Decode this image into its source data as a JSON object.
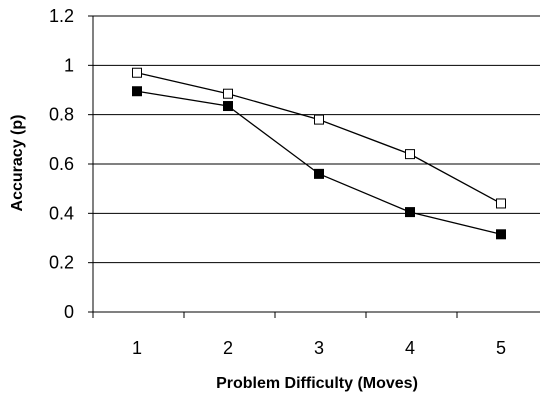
{
  "chart_data": {
    "type": "line",
    "title": "",
    "xlabel": "Problem Difficulty  (Moves)",
    "ylabel": "Accuracy (p)",
    "categories": [
      "1",
      "2",
      "3",
      "4",
      "5"
    ],
    "x": [
      1,
      2,
      3,
      4,
      5
    ],
    "ylim": [
      0,
      1.2
    ],
    "yticks": [
      0,
      0.2,
      0.4,
      0.6,
      0.8,
      1,
      1.2
    ],
    "ytick_labels": [
      "0",
      "0.2",
      "0.4",
      "0.6",
      "0.8",
      "1",
      "1.2"
    ],
    "grid": "horizontal",
    "legend": "none",
    "series": [
      {
        "marker": "open-square",
        "color": "#000000",
        "values": [
          0.97,
          0.885,
          0.78,
          0.64,
          0.44
        ]
      },
      {
        "marker": "filled-square",
        "color": "#000000",
        "values": [
          0.895,
          0.835,
          0.56,
          0.405,
          0.315
        ]
      }
    ]
  }
}
